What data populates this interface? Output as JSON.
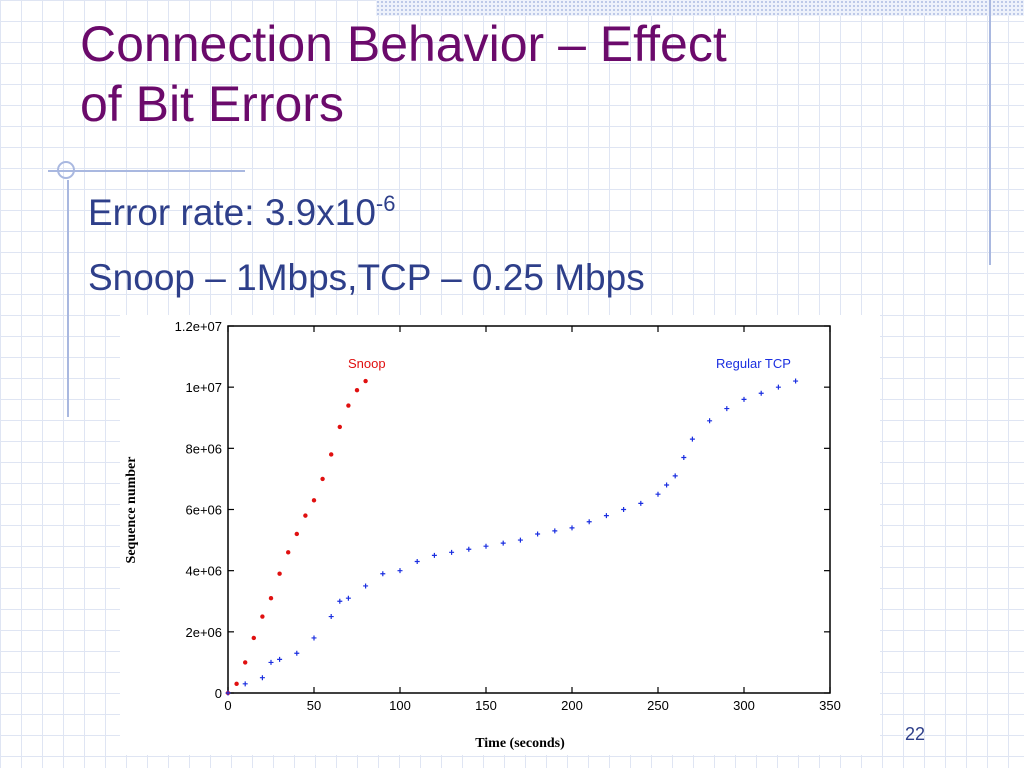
{
  "slide": {
    "title_line1": "Connection Behavior – Effect",
    "title_line2": "of Bit Errors",
    "bullet1_text": "Error rate: 3.9x10",
    "bullet1_sup": "-6",
    "bullet2_text": "Snoop – 1Mbps,TCP – 0.25 Mbps",
    "page_number": "22"
  },
  "colors": {
    "title": "#6b0a6b",
    "bullet": "#2e3f8a",
    "snoop": "#e01010",
    "tcp": "#1a2ee0"
  },
  "chart_data": {
    "type": "scatter",
    "xlabel": "Time (seconds)",
    "ylabel": "Sequence number",
    "xlim": [
      0,
      350
    ],
    "ylim": [
      0,
      12000000
    ],
    "xticks": [
      0,
      50,
      100,
      150,
      200,
      250,
      300,
      350
    ],
    "xtick_labels": [
      "0",
      "50",
      "100",
      "150",
      "200",
      "250",
      "300",
      "350"
    ],
    "yticks": [
      0,
      2000000,
      4000000,
      6000000,
      8000000,
      10000000,
      12000000
    ],
    "ytick_labels": [
      "0",
      "2e+06",
      "4e+06",
      "6e+06",
      "8e+06",
      "1e+07",
      "1.2e+07"
    ],
    "grid": false,
    "series": [
      {
        "name": "Snoop",
        "color": "#e01010",
        "x": [
          0,
          5,
          10,
          15,
          20,
          25,
          30,
          35,
          40,
          45,
          50,
          55,
          60,
          65,
          70,
          75,
          80
        ],
        "y": [
          0,
          300000,
          1000000,
          1800000,
          2500000,
          3100000,
          3900000,
          4600000,
          5200000,
          5800000,
          6300000,
          7000000,
          7800000,
          8700000,
          9400000,
          9900000,
          10200000
        ]
      },
      {
        "name": "Regular TCP",
        "color": "#1a2ee0",
        "x": [
          0,
          10,
          20,
          25,
          30,
          40,
          50,
          60,
          65,
          70,
          80,
          90,
          100,
          110,
          120,
          130,
          140,
          150,
          160,
          170,
          180,
          190,
          200,
          210,
          220,
          230,
          240,
          250,
          255,
          260,
          265,
          270,
          280,
          290,
          300,
          310,
          320,
          330
        ],
        "y": [
          0,
          300000,
          500000,
          1000000,
          1100000,
          1300000,
          1800000,
          2500000,
          3000000,
          3100000,
          3500000,
          3900000,
          4000000,
          4300000,
          4500000,
          4600000,
          4700000,
          4800000,
          4900000,
          5000000,
          5200000,
          5300000,
          5400000,
          5600000,
          5800000,
          6000000,
          6200000,
          6500000,
          6800000,
          7100000,
          7700000,
          8300000,
          8900000,
          9300000,
          9600000,
          9800000,
          10000000,
          10200000
        ]
      }
    ]
  }
}
